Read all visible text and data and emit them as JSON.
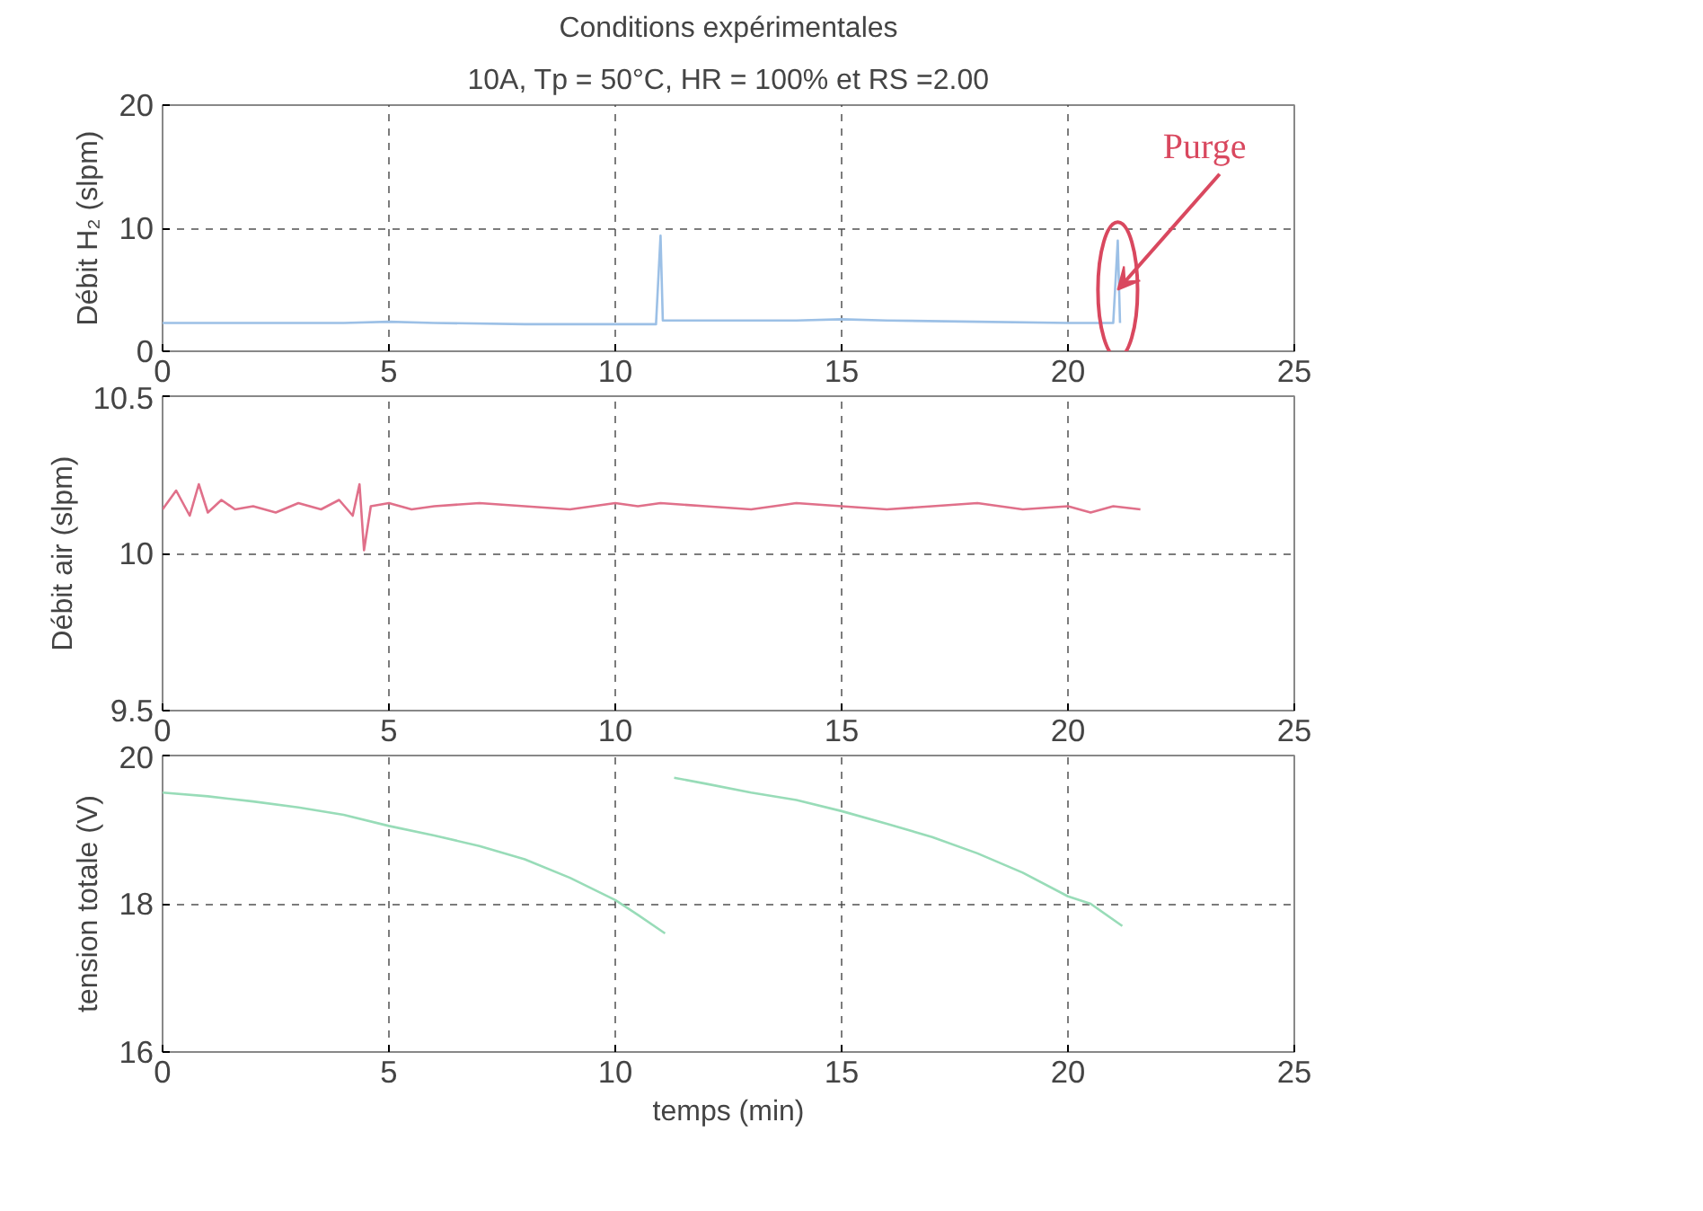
{
  "chart_data": [
    {
      "type": "line",
      "title": "Conditions expérimentales",
      "subtitle": "10A, Tp = 50°C, HR = 100% et RS =2.00",
      "ylabel": "Débit H₂ (slpm)",
      "xlim": [
        0,
        25
      ],
      "ylim": [
        0,
        20
      ],
      "xticks": [
        0,
        5,
        10,
        15,
        20,
        25
      ],
      "yticks": [
        0,
        10,
        20
      ],
      "grid": true,
      "line_style": "solid",
      "x": [
        0,
        2,
        4,
        5,
        6,
        8,
        10,
        10.9,
        11,
        11.05,
        11.1,
        12,
        14,
        15,
        16,
        18,
        20,
        21.0,
        21.1,
        21.15
      ],
      "series": [
        {
          "color": "#9cc0e6",
          "values": [
            2.3,
            2.3,
            2.3,
            2.4,
            2.3,
            2.2,
            2.2,
            2.2,
            9.4,
            2.5,
            2.5,
            2.5,
            2.5,
            2.6,
            2.5,
            2.4,
            2.3,
            2.3,
            9.0,
            2.3
          ]
        }
      ],
      "annotations": [
        {
          "text": "Purge",
          "x": 21.1,
          "y": 5
        }
      ]
    },
    {
      "type": "line",
      "ylabel": "Débit air (slpm)",
      "xlim": [
        0,
        25
      ],
      "ylim": [
        9.5,
        10.5
      ],
      "xticks": [
        0,
        5,
        10,
        15,
        20,
        25
      ],
      "yticks": [
        9.5,
        10,
        10.5
      ],
      "grid": true,
      "line_style": "solid",
      "x": [
        0,
        0.3,
        0.6,
        0.8,
        1.0,
        1.3,
        1.6,
        2.0,
        2.5,
        3.0,
        3.5,
        3.9,
        4.2,
        4.35,
        4.45,
        4.6,
        5.0,
        5.5,
        6.0,
        7.0,
        8.0,
        9.0,
        10.0,
        10.5,
        11.0,
        12.0,
        13.0,
        14.0,
        15.0,
        16.0,
        17.0,
        18.0,
        19.0,
        20.0,
        20.5,
        21.0,
        21.6
      ],
      "series": [
        {
          "color": "#e0708a",
          "values": [
            10.14,
            10.2,
            10.12,
            10.22,
            10.13,
            10.17,
            10.14,
            10.15,
            10.13,
            10.16,
            10.14,
            10.17,
            10.12,
            10.22,
            10.01,
            10.15,
            10.16,
            10.14,
            10.15,
            10.16,
            10.15,
            10.14,
            10.16,
            10.15,
            10.16,
            10.15,
            10.14,
            10.16,
            10.15,
            10.14,
            10.15,
            10.16,
            10.14,
            10.15,
            10.13,
            10.15,
            10.14
          ]
        }
      ]
    },
    {
      "type": "line",
      "ylabel": "tension totale (V)",
      "xlabel": "temps (min)",
      "xlim": [
        0,
        25
      ],
      "ylim": [
        16,
        20
      ],
      "xticks": [
        0,
        5,
        10,
        15,
        20,
        25
      ],
      "yticks": [
        16,
        18,
        20
      ],
      "grid": true,
      "line_style": "solid",
      "x": [
        0,
        1,
        2,
        3,
        4,
        5,
        6,
        7,
        8,
        9,
        10,
        10.5,
        11.1,
        11.2,
        11.3,
        12,
        13,
        14,
        15,
        16,
        17,
        18,
        19,
        20,
        20.5,
        21.2
      ],
      "series": [
        {
          "color": "#98dcb8",
          "values": [
            19.5,
            19.45,
            19.38,
            19.3,
            19.2,
            19.05,
            18.92,
            18.78,
            18.6,
            18.35,
            18.05,
            17.85,
            17.6,
            null,
            19.7,
            19.62,
            19.5,
            19.4,
            19.25,
            19.08,
            18.9,
            18.68,
            18.42,
            18.1,
            18.0,
            17.7
          ]
        }
      ]
    }
  ]
}
